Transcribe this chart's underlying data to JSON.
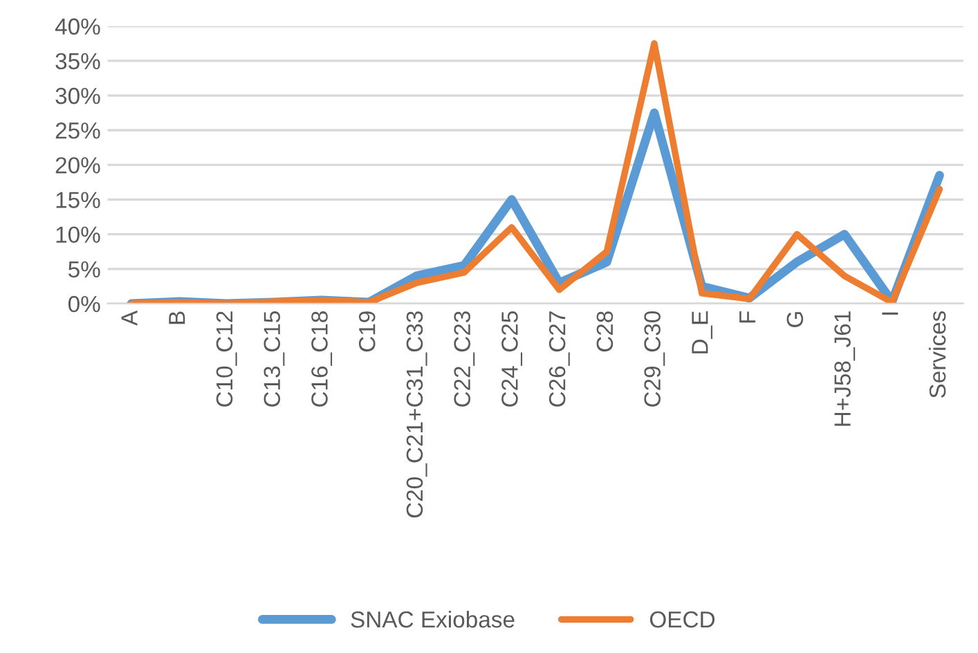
{
  "chart_data": {
    "type": "line",
    "categories": [
      "A",
      "B",
      "C10_C12",
      "C13_C15",
      "C16_C18",
      "C19",
      "C20_C21+C31_C33",
      "C22_C23",
      "C24_C25",
      "C26_C27",
      "C28",
      "C29_C30",
      "D_E",
      "F",
      "G",
      "H+J58_J61",
      "I",
      "Services"
    ],
    "series": [
      {
        "name": "SNAC Exiobase",
        "color": "#5b9bd5",
        "values": [
          0,
          0.3,
          0,
          0.2,
          0.5,
          0.2,
          4,
          5.5,
          15,
          3,
          6,
          27.5,
          2.5,
          0.8,
          6,
          10,
          0.3,
          18.5
        ]
      },
      {
        "name": "OECD",
        "color": "#ed7d31",
        "values": [
          0,
          0.2,
          0,
          0.3,
          0.5,
          0.2,
          3,
          4.5,
          11,
          2,
          7.5,
          37.5,
          1.5,
          0.7,
          10,
          4,
          0.2,
          16.5
        ]
      }
    ],
    "ylim": [
      0,
      40
    ],
    "yticks": [
      {
        "value": 0,
        "label": "0%"
      },
      {
        "value": 5,
        "label": "5%"
      },
      {
        "value": 10,
        "label": "10%"
      },
      {
        "value": 15,
        "label": "15%"
      },
      {
        "value": 20,
        "label": "20%"
      },
      {
        "value": 25,
        "label": "25%"
      },
      {
        "value": 30,
        "label": "30%"
      },
      {
        "value": 35,
        "label": "35%"
      },
      {
        "value": 40,
        "label": "40%"
      }
    ],
    "grid": "y",
    "legend": "bottom",
    "marker": "none",
    "line_style": "solid"
  }
}
